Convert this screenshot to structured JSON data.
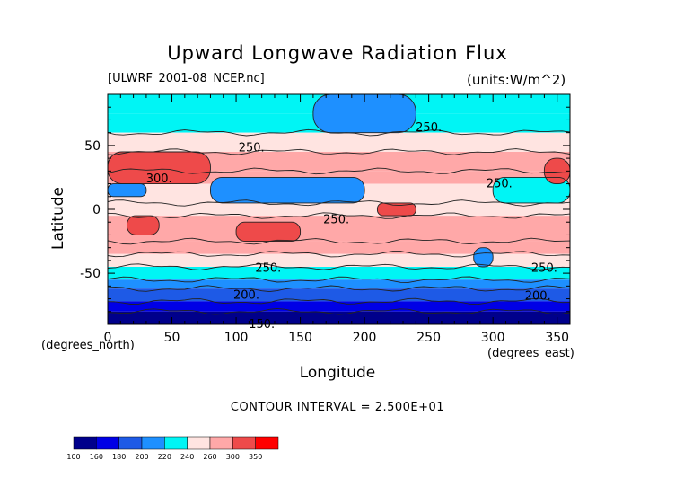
{
  "chart_data": {
    "type": "heatmap",
    "title": "Upward Longwave Radiation Flux",
    "dataset_label": "[ULWRF_2001-08_NCEP.nc]",
    "units_label": "(units:W/m^2)",
    "xlabel": "Longitude",
    "ylabel": "Latitude",
    "x_unit": "(degrees_east)",
    "y_unit": "(degrees_north)",
    "xlim": [
      0,
      360
    ],
    "ylim": [
      -90,
      90
    ],
    "x_ticks": [
      0,
      50,
      100,
      150,
      200,
      250,
      300,
      350
    ],
    "y_ticks": [
      -50,
      0,
      50
    ],
    "contour_interval": "CONTOUR INTERVAL = 2.500E+01",
    "contour_labels": [
      {
        "text": "250.",
        "lon": 112,
        "lat": 48
      },
      {
        "text": "300.",
        "lon": 40,
        "lat": 24
      },
      {
        "text": "250.",
        "lon": 250,
        "lat": 64
      },
      {
        "text": "250.",
        "lon": 305,
        "lat": 20
      },
      {
        "text": "250.",
        "lon": 178,
        "lat": -8
      },
      {
        "text": "250.",
        "lon": 125,
        "lat": -46
      },
      {
        "text": "250.",
        "lon": 340,
        "lat": -46
      },
      {
        "text": "200.",
        "lon": 108,
        "lat": -67
      },
      {
        "text": "200.",
        "lon": 335,
        "lat": -68
      },
      {
        "text": "150.",
        "lon": 120,
        "lat": -90
      }
    ],
    "colorbar": {
      "levels": [
        100,
        160,
        180,
        200,
        220,
        240,
        260,
        300,
        350
      ],
      "colors": [
        "#00008b",
        "#0000e6",
        "#1e5ae6",
        "#1e90ff",
        "#00f5f5",
        "#ffe4e1",
        "#ffa8a8",
        "#ee4a4a",
        "#ff0000"
      ]
    },
    "latitude_bands": [
      {
        "lat": [
          75,
          90
        ],
        "value": 230
      },
      {
        "lat": [
          60,
          75
        ],
        "value": 238
      },
      {
        "lat": [
          45,
          60
        ],
        "value": 255
      },
      {
        "lat": [
          30,
          45
        ],
        "value": 275
      },
      {
        "lat": [
          20,
          30
        ],
        "value": 270
      },
      {
        "lat": [
          5,
          20
        ],
        "value": 245
      },
      {
        "lat": [
          -5,
          5
        ],
        "value": 258
      },
      {
        "lat": [
          -25,
          -5
        ],
        "value": 275
      },
      {
        "lat": [
          -35,
          -25
        ],
        "value": 262
      },
      {
        "lat": [
          -45,
          -35
        ],
        "value": 245
      },
      {
        "lat": [
          -55,
          -45
        ],
        "value": 225
      },
      {
        "lat": [
          -62,
          -55
        ],
        "value": 210
      },
      {
        "lat": [
          -72,
          -62
        ],
        "value": 185
      },
      {
        "lat": [
          -80,
          -72
        ],
        "value": 168
      },
      {
        "lat": [
          -90,
          -80
        ],
        "value": 150
      }
    ],
    "anomalies": [
      {
        "lon": [
          160,
          240
        ],
        "lat": [
          60,
          90
        ],
        "value": 215
      },
      {
        "lon": [
          80,
          200
        ],
        "lat": [
          5,
          25
        ],
        "value": 218
      },
      {
        "lon": [
          0,
          30
        ],
        "lat": [
          10,
          20
        ],
        "value": 200
      },
      {
        "lon": [
          300,
          360
        ],
        "lat": [
          5,
          25
        ],
        "value": 225
      },
      {
        "lon": [
          0,
          80
        ],
        "lat": [
          20,
          45
        ],
        "value": 305
      },
      {
        "lon": [
          340,
          360
        ],
        "lat": [
          20,
          40
        ],
        "value": 305
      },
      {
        "lon": [
          15,
          40
        ],
        "lat": [
          -20,
          -5
        ],
        "value": 310
      },
      {
        "lon": [
          100,
          150
        ],
        "lat": [
          -25,
          -10
        ],
        "value": 310
      },
      {
        "lon": [
          210,
          240
        ],
        "lat": [
          -5,
          5
        ],
        "value": 305
      },
      {
        "lon": [
          285,
          300
        ],
        "lat": [
          -45,
          -30
        ],
        "value": 215
      }
    ]
  }
}
